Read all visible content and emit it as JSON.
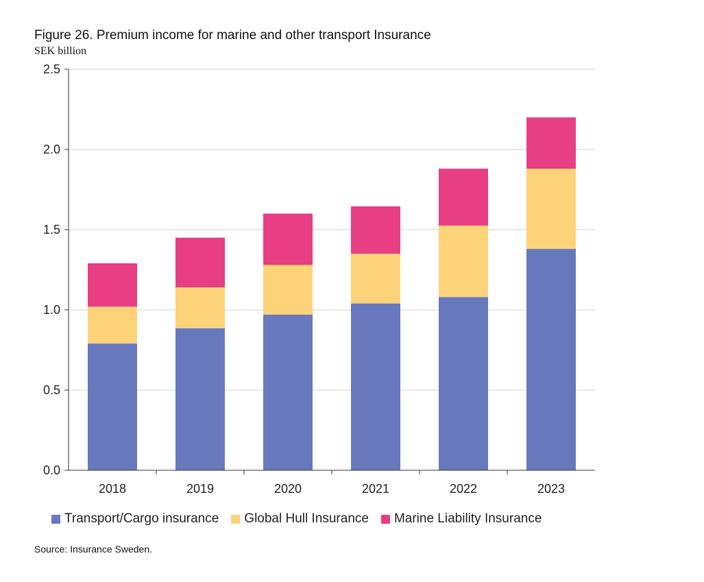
{
  "chart_data": {
    "type": "bar",
    "stacked": true,
    "title": "Figure 26. Premium income for marine and other transport Insurance",
    "ylabel": "SEK billion",
    "xlabel": "",
    "ylim": [
      0,
      2.5
    ],
    "yticks": [
      "0.0",
      "0.5",
      "1.0",
      "1.5",
      "2.0",
      "2.5"
    ],
    "grid": true,
    "legend": "bottom",
    "categories": [
      "2018",
      "2019",
      "2020",
      "2021",
      "2022",
      "2023"
    ],
    "series": [
      {
        "name": "Transport/Cargo insurance",
        "color": "#6779BC",
        "values": [
          0.79,
          0.885,
          0.97,
          1.04,
          1.08,
          1.38
        ]
      },
      {
        "name": "Global Hull Insurance",
        "color": "#FDD37A",
        "values": [
          0.23,
          0.255,
          0.31,
          0.31,
          0.445,
          0.5
        ]
      },
      {
        "name": "Marine Liability Insurance",
        "color": "#E83E84",
        "values": [
          0.27,
          0.31,
          0.32,
          0.295,
          0.355,
          0.32
        ]
      }
    ],
    "source": "Source: Insurance Sweden."
  }
}
